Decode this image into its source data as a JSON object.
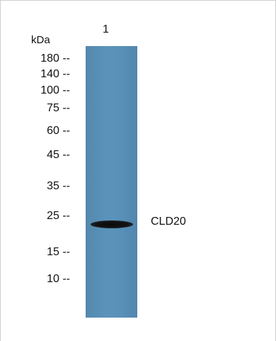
{
  "blot": {
    "unit_label": "kDa",
    "lane_number": "1",
    "band_label": "CLD20",
    "lane_color": "#5a90b8",
    "band_color": "#111111",
    "markers": [
      {
        "label": "180 --"
      },
      {
        "label": "140 --"
      },
      {
        "label": "100 --"
      },
      {
        "label": "75 --"
      },
      {
        "label": "60 --"
      },
      {
        "label": "45 --"
      },
      {
        "label": "35 --"
      },
      {
        "label": "25 --"
      },
      {
        "label": "15 --"
      },
      {
        "label": "10 --"
      }
    ]
  }
}
